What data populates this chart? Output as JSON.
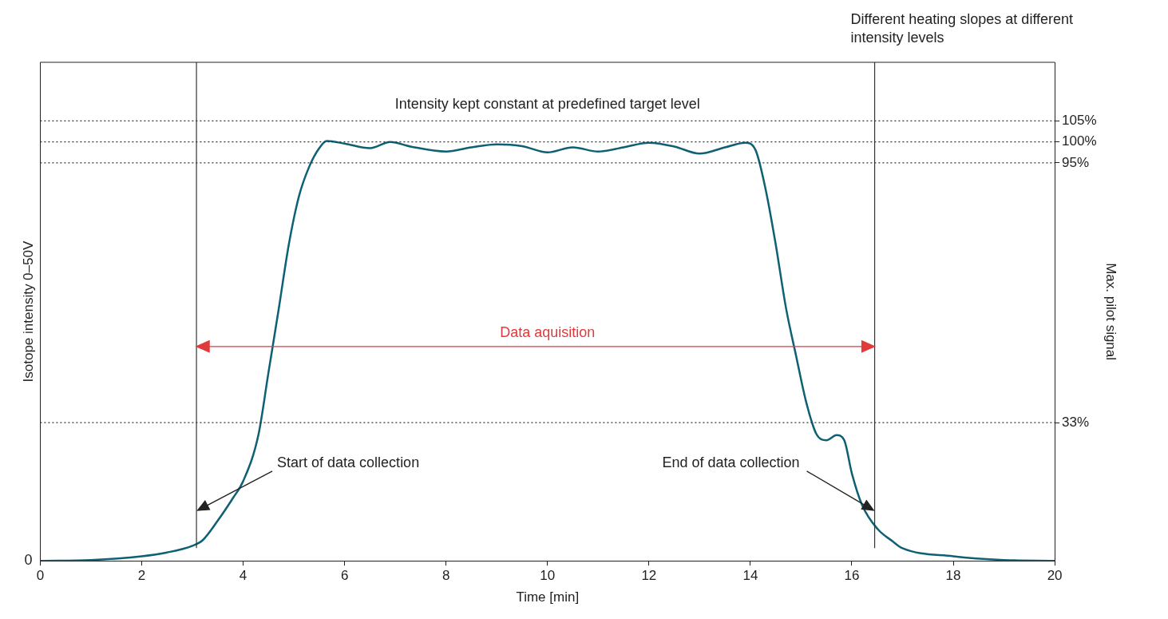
{
  "chart_data": {
    "type": "line",
    "xlabel": "Time [min]",
    "ylabel": "Isotope intensity 0–50V",
    "y2label": "Max. pilot signal",
    "x": [
      0,
      1,
      2,
      2.5,
      3,
      3.2,
      3.5,
      3.8,
      4,
      4.3,
      4.5,
      4.7,
      4.9,
      5.1,
      5.3,
      5.5,
      5.65,
      6,
      6.5,
      6.9,
      7.3,
      8,
      8.5,
      9,
      9.5,
      10,
      10.5,
      11,
      11.5,
      12,
      12.5,
      13,
      13.5,
      13.9,
      14.1,
      14.3,
      14.5,
      14.7,
      14.9,
      15.1,
      15.3,
      15.5,
      15.7,
      15.85,
      16,
      16.2,
      16.5,
      16.8,
      17,
      18,
      19,
      20
    ],
    "series": [
      {
        "color": "#0e6074",
        "axis": "y2",
        "values": [
          0,
          0.2,
          1.1,
          2,
          3.6,
          4.9,
          9.6,
          15,
          19,
          30,
          45,
          60,
          75.5,
          87,
          94,
          98.5,
          100.2,
          99.6,
          98.5,
          100,
          98.9,
          97.7,
          98.7,
          99.4,
          99,
          97.5,
          98.7,
          97.7,
          98.7,
          99.8,
          98.9,
          97.2,
          98.7,
          99.8,
          98.1,
          88.7,
          75.5,
          60.5,
          49,
          37.9,
          30.3,
          28.8,
          30,
          28.8,
          20.9,
          13.4,
          7.7,
          4.7,
          3,
          1.1,
          0.2,
          0
        ]
      }
    ],
    "xlim": [
      0,
      20
    ],
    "xticks": [
      0,
      2,
      4,
      6,
      8,
      10,
      12,
      14,
      16,
      18,
      20
    ],
    "y2lim": [
      0,
      119
    ],
    "y2ticks": [
      {
        "value": 33,
        "label": "33%"
      },
      {
        "value": 95,
        "label": "95%"
      },
      {
        "value": 100,
        "label": "100%"
      },
      {
        "value": 105,
        "label": "105%"
      }
    ],
    "ref_lines": [
      {
        "axis": "y2",
        "value": 105,
        "color": "#333333",
        "line_style": "dotted"
      },
      {
        "axis": "y2",
        "value": 100,
        "color": "#333333",
        "line_style": "dotted"
      },
      {
        "axis": "y2",
        "value": 95,
        "color": "#333333",
        "line_style": "dotted"
      },
      {
        "axis": "y2",
        "value": 33,
        "color": "#333333",
        "line_style": "dotted"
      },
      {
        "axis": "x",
        "value": 3.08,
        "color": "#333333",
        "line_style": "solid"
      },
      {
        "axis": "x",
        "value": 16.45,
        "color": "#333333",
        "line_style": "solid"
      }
    ],
    "annotations": [
      "Different heating slopes at different intensity levels",
      "Intensity kept constant at predefined target level",
      "Data aquisition",
      "0",
      "Start of data collection",
      "End of data collection"
    ],
    "grid": false,
    "legend": false,
    "marker": "none",
    "line_style": "solid"
  }
}
